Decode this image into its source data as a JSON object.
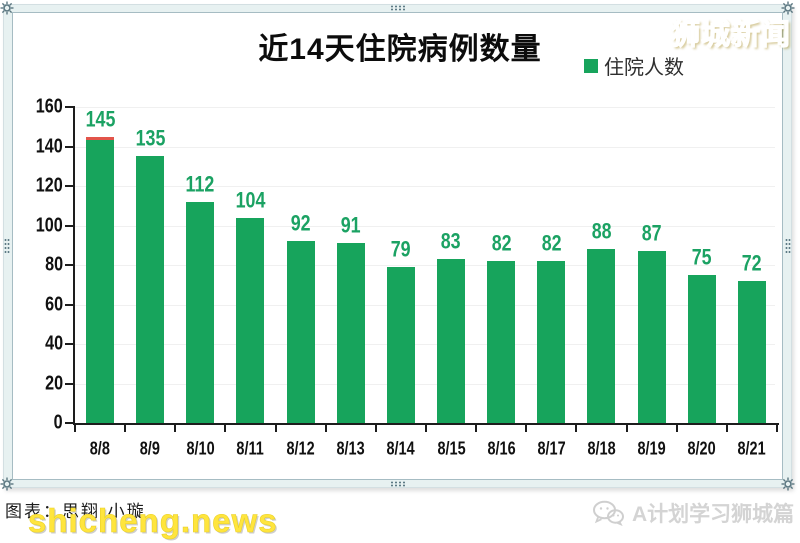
{
  "header": {
    "title": "近14天住院病例数量",
    "brand": "狮城新闻"
  },
  "legend": {
    "label": "住院人数",
    "color": "#17a45c"
  },
  "chart_data": {
    "type": "bar",
    "title": "近14天住院病例数量",
    "series_name": "住院人数",
    "categories": [
      "8/8",
      "8/9",
      "8/10",
      "8/11",
      "8/12",
      "8/13",
      "8/14",
      "8/15",
      "8/16",
      "8/17",
      "8/18",
      "8/19",
      "8/20",
      "8/21"
    ],
    "values": [
      145,
      135,
      112,
      104,
      92,
      91,
      79,
      83,
      82,
      82,
      88,
      87,
      75,
      72
    ],
    "ylim": [
      0,
      160
    ],
    "yticks": [
      0,
      20,
      40,
      60,
      80,
      100,
      120,
      140,
      160
    ],
    "grid": true,
    "legend_position": "top-right",
    "xlabel": "",
    "ylabel": "",
    "bar_color": "#17a45c",
    "value_label_color": "#1ba263",
    "first_bar_top_cap_color": "#e2544a"
  },
  "footer": {
    "credit": "图表：思翔·小璇",
    "watermark": "shicheng.news",
    "account": "A计划学习狮城篇"
  }
}
